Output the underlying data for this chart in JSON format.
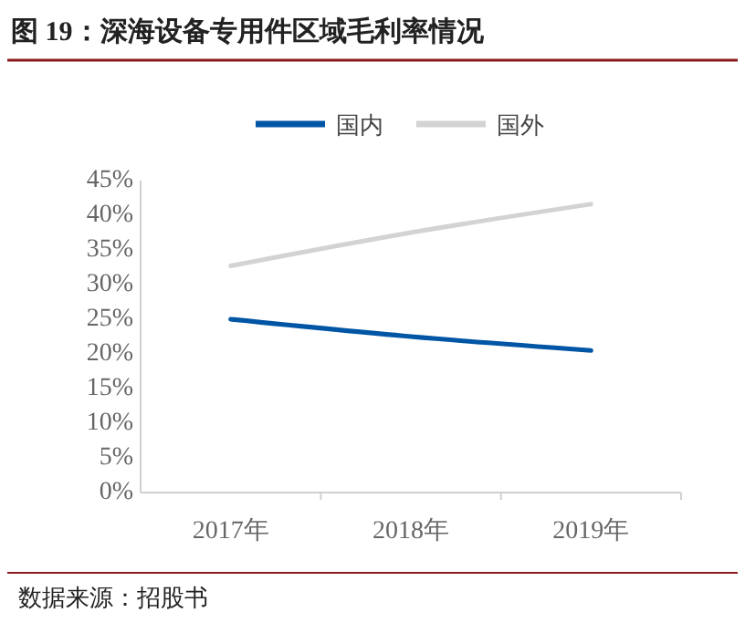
{
  "chart_data": {
    "type": "line",
    "title": "图 19：深海设备专用件区域毛利率情况",
    "categories": [
      "2017年",
      "2018年",
      "2019年"
    ],
    "series": [
      {
        "name": "国内",
        "color": "#0055a5",
        "values": [
          25.0,
          22.5,
          20.5
        ]
      },
      {
        "name": "国外",
        "color": "#d3d3d3",
        "values": [
          32.7,
          37.5,
          41.6
        ]
      }
    ],
    "ylim": [
      0,
      45
    ],
    "yticks": [
      {
        "value": 0,
        "label": "0%"
      },
      {
        "value": 5,
        "label": "5%"
      },
      {
        "value": 10,
        "label": "10%"
      },
      {
        "value": 15,
        "label": "15%"
      },
      {
        "value": 20,
        "label": "20%"
      },
      {
        "value": 25,
        "label": "25%"
      },
      {
        "value": 30,
        "label": "30%"
      },
      {
        "value": 35,
        "label": "35%"
      },
      {
        "value": 40,
        "label": "40%"
      },
      {
        "value": 45,
        "label": "45%"
      }
    ],
    "legend": "top",
    "grid": false,
    "marker": "none",
    "line_style": "solid",
    "annotations": [
      "数据来源：招股书"
    ]
  }
}
